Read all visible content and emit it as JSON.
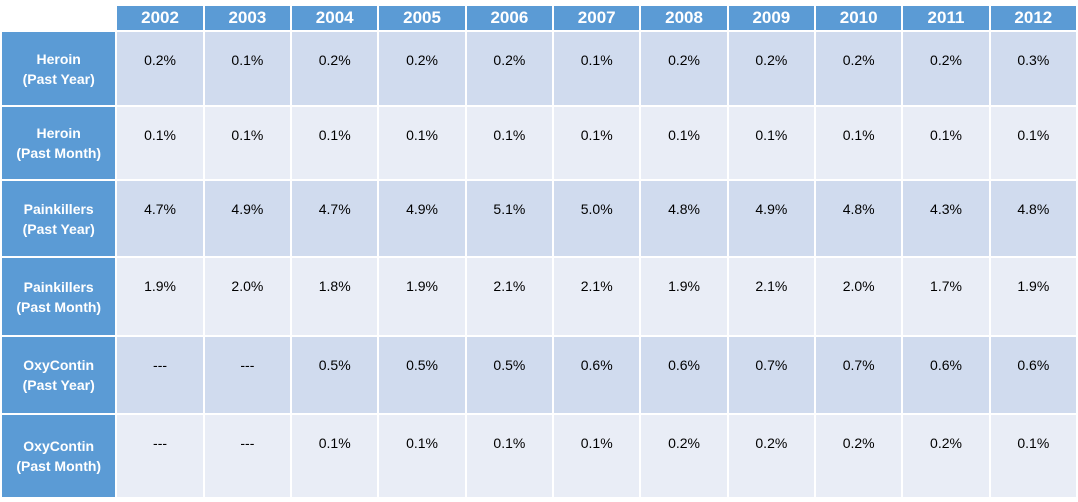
{
  "chart_data": {
    "type": "table",
    "columns": [
      "2002",
      "2003",
      "2004",
      "2005",
      "2006",
      "2007",
      "2008",
      "2009",
      "2010",
      "2011",
      "2012"
    ],
    "rows": [
      {
        "line1": "Heroin",
        "line2": "(Past Year)",
        "values": [
          "0.2%",
          "0.1%",
          "0.2%",
          "0.2%",
          "0.2%",
          "0.1%",
          "0.2%",
          "0.2%",
          "0.2%",
          "0.2%",
          "0.3%"
        ]
      },
      {
        "line1": "Heroin",
        "line2": "(Past Month)",
        "values": [
          "0.1%",
          "0.1%",
          "0.1%",
          "0.1%",
          "0.1%",
          "0.1%",
          "0.1%",
          "0.1%",
          "0.1%",
          "0.1%",
          "0.1%"
        ]
      },
      {
        "line1": "Painkillers",
        "line2": "(Past Year)",
        "values": [
          "4.7%",
          "4.9%",
          "4.7%",
          "4.9%",
          "5.1%",
          "5.0%",
          "4.8%",
          "4.9%",
          "4.8%",
          "4.3%",
          "4.8%"
        ]
      },
      {
        "line1": "Painkillers",
        "line2": "(Past Month)",
        "values": [
          "1.9%",
          "2.0%",
          "1.8%",
          "1.9%",
          "2.1%",
          "2.1%",
          "1.9%",
          "2.1%",
          "2.0%",
          "1.7%",
          "1.9%"
        ]
      },
      {
        "line1": "OxyContin",
        "line2": "(Past Year)",
        "values": [
          "---",
          "---",
          "0.5%",
          "0.5%",
          "0.5%",
          "0.6%",
          "0.6%",
          "0.7%",
          "0.7%",
          "0.6%",
          "0.6%"
        ]
      },
      {
        "line1": "OxyContin",
        "line2": "(Past Month)",
        "values": [
          "---",
          "---",
          "0.1%",
          "0.1%",
          "0.1%",
          "0.1%",
          "0.2%",
          "0.2%",
          "0.2%",
          "0.2%",
          "0.1%"
        ]
      }
    ]
  },
  "colors": {
    "header": "#5b9bd5",
    "band_dark": "#d0dbee",
    "band_light": "#e9edf6"
  }
}
